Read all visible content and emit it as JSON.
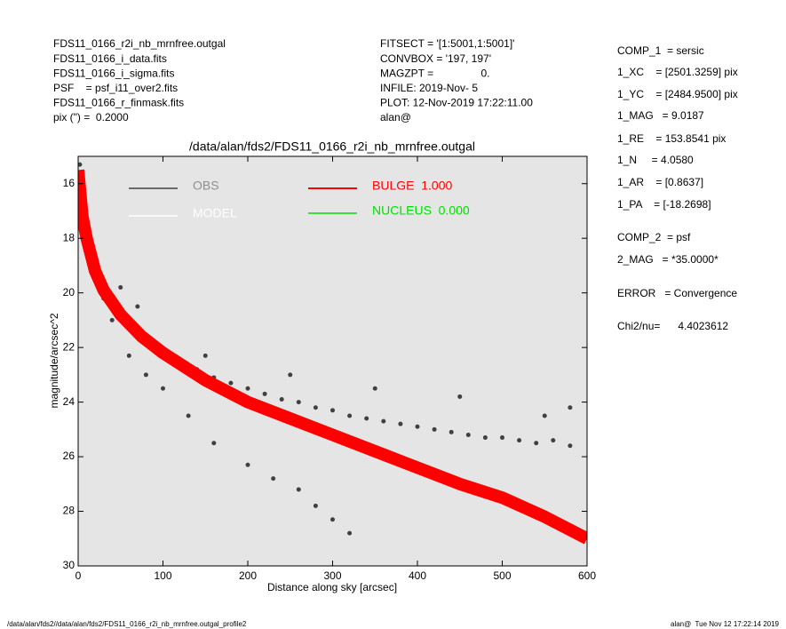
{
  "header_left": [
    "FDS11_0166_r2i_nb_mrnfree.outgal",
    "FDS11_0166_i_data.fits",
    "FDS11_0166_i_sigma.fits",
    "PSF    = psf_i11_over2.fits",
    "FDS11_0166_r_finmask.fits",
    "pix (\") =  0.2000"
  ],
  "header_middle": [
    "FITSECT = '[1:5001,1:5001]'",
    "CONVBOX = '197, 197'",
    "MAGZPT =                0.",
    "INFILE: 2019-Nov- 5",
    "PLOT: 12-Nov-2019 17:22:11.00",
    "alan@"
  ],
  "header_right": [
    "COMP_1  = sersic",
    "1_XC    = [2501.3259] pix",
    "1_YC    = [2484.9500] pix",
    "1_MAG   = 9.0187",
    "1_RE    = 153.8541 pix",
    "1_N     = 4.0580",
    "1_AR    = [0.8637]",
    "1_PA    = [-18.2698]",
    "COMP_2  = psf",
    "2_MAG   = *35.0000*",
    "ERROR   = Convergence",
    "Chi2/nu=      4.4023612"
  ],
  "footer_left": "/data/alan/fds2//data/alan/fds2/FDS11_0166_r2i_nb_mrnfree.outgal_profile2",
  "footer_right": "alan@  Tue Nov 12 17:22:14 2019",
  "chart_data": {
    "type": "scatter",
    "title": "/data/alan/fds2/FDS11_0166_r2i_nb_mrnfree.outgal",
    "x_label": "Distance along sky [arcsec]",
    "y_label": "magnitude/arcsec^2",
    "xlim": [
      0,
      600
    ],
    "xticks": [
      0,
      100,
      200,
      300,
      400,
      500,
      600
    ],
    "ylim": [
      15,
      30
    ],
    "yticks": [
      16,
      18,
      20,
      22,
      24,
      26,
      28,
      30
    ],
    "y_inverted": true,
    "series": [
      {
        "name": "OBS",
        "color": "#404040",
        "style": "points",
        "x": [
          2,
          5,
          10,
          20,
          30,
          40,
          50,
          60,
          70,
          80,
          90,
          100,
          120,
          140,
          160,
          180,
          200,
          220,
          240,
          260,
          280,
          300,
          320,
          340,
          360,
          380,
          400,
          420,
          440,
          460,
          480,
          500,
          520,
          540,
          560,
          580,
          40,
          60,
          80,
          100,
          130,
          160,
          200,
          230,
          260,
          280,
          300,
          320,
          150,
          250,
          350,
          450,
          550,
          580,
          30,
          50,
          70
        ],
        "values": [
          15.3,
          17,
          18.2,
          19.3,
          20,
          20.5,
          20.9,
          21.2,
          21.5,
          21.7,
          22,
          22.2,
          22.5,
          22.8,
          23.1,
          23.3,
          23.5,
          23.7,
          23.9,
          24,
          24.2,
          24.3,
          24.5,
          24.6,
          24.7,
          24.8,
          24.9,
          25,
          25.1,
          25.2,
          25.3,
          25.3,
          25.4,
          25.5,
          25.4,
          25.6,
          21,
          22.3,
          23,
          23.5,
          24.5,
          25.5,
          26.3,
          26.8,
          27.2,
          27.8,
          28.3,
          28.8,
          22.3,
          23,
          23.5,
          23.8,
          24.5,
          24.2,
          20.2,
          19.8,
          20.5
        ]
      },
      {
        "name": "MODEL",
        "color": "#ffffff",
        "style": "line",
        "x": [
          0,
          5,
          10,
          20,
          30,
          50,
          75,
          100,
          150,
          200,
          250,
          300,
          350,
          400,
          450,
          500,
          550,
          600
        ],
        "values": [
          15.6,
          17.3,
          18.1,
          19.3,
          20,
          20.9,
          21.6,
          22.2,
          23.2,
          24,
          24.6,
          25.2,
          25.8,
          26.4,
          27,
          27.5,
          28.2,
          29
        ]
      },
      {
        "name": "BULGE  1.000",
        "color": "#ff0000",
        "style": "line",
        "x": [
          0,
          5,
          10,
          20,
          30,
          50,
          75,
          100,
          150,
          200,
          250,
          300,
          350,
          400,
          450,
          500,
          550,
          600
        ],
        "values": [
          15.5,
          17.2,
          18,
          19.2,
          19.9,
          20.8,
          21.6,
          22.2,
          23.2,
          24,
          24.6,
          25.2,
          25.8,
          26.4,
          27,
          27.5,
          28.2,
          29
        ]
      },
      {
        "name": "NUCLEUS  0.000",
        "color": "#00e000",
        "style": "line",
        "x": [],
        "values": []
      }
    ]
  }
}
